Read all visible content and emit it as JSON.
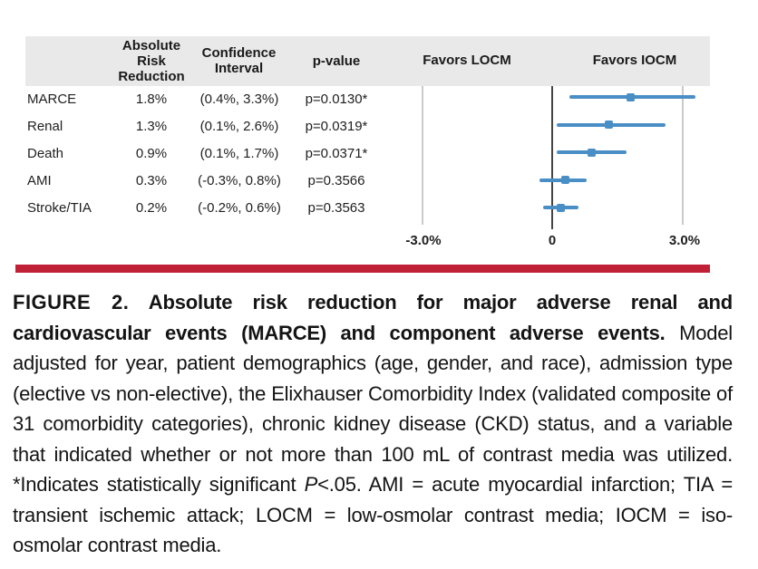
{
  "figure": {
    "table": {
      "headers": {
        "arr": "Absolute Risk Reduction",
        "ci": "Confidence Interval",
        "pvalue": "p-value"
      },
      "rows": [
        {
          "label": "MARCE",
          "arr": "1.8%",
          "ci": "(0.4%, 3.3%)",
          "pvalue": "p=0.0130*"
        },
        {
          "label": "Renal",
          "arr": "1.3%",
          "ci": "(0.1%, 2.6%)",
          "pvalue": "p=0.0319*"
        },
        {
          "label": "Death",
          "arr": "0.9%",
          "ci": "(0.1%, 1.7%)",
          "pvalue": "p=0.0371*"
        },
        {
          "label": "AMI",
          "arr": "0.3%",
          "ci": "(-0.3%, 0.8%)",
          "pvalue": "p=0.3566"
        },
        {
          "label": "Stroke/TIA",
          "arr": "0.2%",
          "ci": "(-0.2%, 0.6%)",
          "pvalue": "p=0.3563"
        }
      ]
    },
    "plot_headers": {
      "left": "Favors LOCM",
      "right": "Favors IOCM"
    },
    "axis": {
      "tick_labels": [
        "-3.0%",
        "0",
        "3.0%"
      ]
    }
  },
  "chart_data": {
    "type": "scatter",
    "subtype": "forest-plot",
    "title": "Absolute risk reduction for MARCE and component adverse events",
    "categories": [
      "MARCE",
      "Renal",
      "Death",
      "AMI",
      "Stroke/TIA"
    ],
    "points": [
      {
        "label": "MARCE",
        "estimate": 1.8,
        "ci_low": 0.4,
        "ci_high": 3.3,
        "p_value": "p=0.0130*",
        "significant": true
      },
      {
        "label": "Renal",
        "estimate": 1.3,
        "ci_low": 0.1,
        "ci_high": 2.6,
        "p_value": "p=0.0319*",
        "significant": true
      },
      {
        "label": "Death",
        "estimate": 0.9,
        "ci_low": 0.1,
        "ci_high": 1.7,
        "p_value": "p=0.0371*",
        "significant": true
      },
      {
        "label": "AMI",
        "estimate": 0.3,
        "ci_low": -0.3,
        "ci_high": 0.8,
        "p_value": "p=0.3566",
        "significant": false
      },
      {
        "label": "Stroke/TIA",
        "estimate": 0.2,
        "ci_low": -0.2,
        "ci_high": 0.6,
        "p_value": "p=0.3563",
        "significant": false
      }
    ],
    "x_ticks": [
      -3,
      0,
      3
    ],
    "x_tick_labels": [
      "-3.0%",
      "0",
      "3.0%"
    ],
    "x_units": "%",
    "xlim": [
      -3.6,
      3.6
    ],
    "favors_left": "Favors LOCM",
    "favors_right": "Favors IOCM",
    "legend_position": "none",
    "grid": "vertical-reference-lines"
  },
  "caption": {
    "label": "FIGURE 2.",
    "bold_text": " Absolute risk reduction for major adverse renal and cardiovascular events (MARCE) and component adverse events.",
    "body_before_p": " Model adjusted for year, patient demographics (age, gender, and race), admission type (elective vs non-elective), the Elixhauser Comorbidity Index (validated composite of 31 comorbidity categories), chronic kidney disease (CKD) status, and a variable that indicated whether or not more than 100 mL of contrast media was utilized. *Indicates statistically significant ",
    "p_symbol": "P",
    "body_after_p": "<.05. AMI = acute myocardial infarction; TIA = transient ischemic attack; LOCM = low-osmolar contrast media; IOCM = iso-osmolar contrast media."
  },
  "colors": {
    "accent_red": "#c02137",
    "ci_blue": "#4a8ec6",
    "header_band_gray": "#e9e9e9",
    "reference_line_dark": "#454545",
    "gridline_gray": "#c9c9c9"
  }
}
